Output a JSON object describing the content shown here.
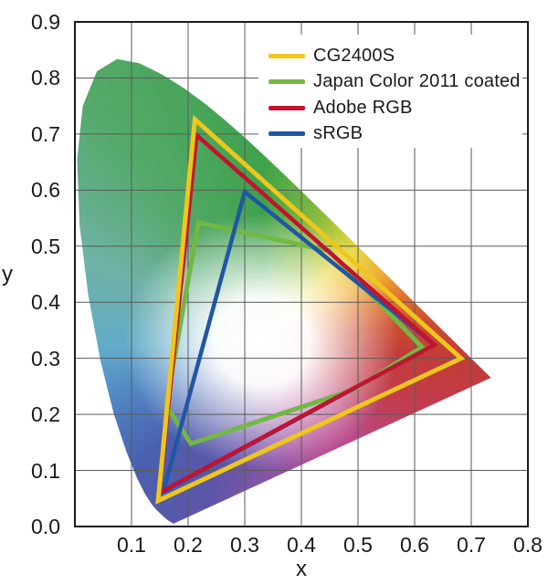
{
  "chart_data": {
    "type": "line",
    "subtype": "cie-1931-chromaticity-gamut-comparison",
    "title": "",
    "xlabel": "x",
    "ylabel": "y",
    "xlim": [
      0,
      0.8
    ],
    "ylim": [
      0,
      0.9
    ],
    "xticks": [
      "0.1",
      "0.2",
      "0.3",
      "0.4",
      "0.5",
      "0.6",
      "0.7",
      "0.8"
    ],
    "yticks": [
      "0.0",
      "0.1",
      "0.2",
      "0.3",
      "0.4",
      "0.5",
      "0.6",
      "0.7",
      "0.8",
      "0.9"
    ],
    "grid": true,
    "grid_color": "#5a5a5a",
    "axis_color": "#1a1a1a",
    "legend_position": "top-right",
    "series": [
      {
        "name": "CG2400S",
        "color": "#eec71c",
        "stroke_width": 5,
        "closed": true,
        "z": 4,
        "points": [
          [
            0.212,
            0.726
          ],
          [
            0.682,
            0.3
          ],
          [
            0.147,
            0.046
          ]
        ]
      },
      {
        "name": "Japan Color 2011 coated",
        "color": "#72b843",
        "stroke_width": 5,
        "closed": true,
        "z": 1,
        "points": [
          [
            0.218,
            0.542
          ],
          [
            0.448,
            0.492
          ],
          [
            0.613,
            0.32
          ],
          [
            0.492,
            0.244
          ],
          [
            0.205,
            0.148
          ],
          [
            0.161,
            0.216
          ]
        ]
      },
      {
        "name": "Adobe RGB",
        "color": "#c41230",
        "stroke_width": 4.5,
        "closed": true,
        "z": 3,
        "points": [
          [
            0.215,
            0.698
          ],
          [
            0.635,
            0.324
          ],
          [
            0.149,
            0.06
          ]
        ]
      },
      {
        "name": "sRGB",
        "color": "#2156a4",
        "stroke_width": 4.5,
        "closed": true,
        "z": 2,
        "points": [
          [
            0.3,
            0.597
          ],
          [
            0.635,
            0.324
          ],
          [
            0.156,
            0.062
          ]
        ]
      }
    ],
    "background": {
      "name": "CIE 1931 xy spectral locus (chromaticity horseshoe)",
      "locus": [
        [
          0.1741,
          0.005
        ],
        [
          0.1644,
          0.0109
        ],
        [
          0.1566,
          0.0177
        ],
        [
          0.144,
          0.0297
        ],
        [
          0.1355,
          0.0399
        ],
        [
          0.1241,
          0.0578
        ],
        [
          0.1096,
          0.0868
        ],
        [
          0.0913,
          0.1327
        ],
        [
          0.0687,
          0.2007
        ],
        [
          0.0454,
          0.295
        ],
        [
          0.0235,
          0.4127
        ],
        [
          0.0082,
          0.5384
        ],
        [
          0.0039,
          0.6548
        ],
        [
          0.0139,
          0.7502
        ],
        [
          0.0389,
          0.812
        ],
        [
          0.0743,
          0.8338
        ],
        [
          0.1142,
          0.8262
        ],
        [
          0.1547,
          0.8059
        ],
        [
          0.1929,
          0.7816
        ],
        [
          0.2296,
          0.7543
        ],
        [
          0.2658,
          0.7243
        ],
        [
          0.3016,
          0.6923
        ],
        [
          0.3373,
          0.6589
        ],
        [
          0.3731,
          0.6245
        ],
        [
          0.4087,
          0.5896
        ],
        [
          0.4441,
          0.5547
        ],
        [
          0.4788,
          0.5202
        ],
        [
          0.5125,
          0.4866
        ],
        [
          0.5448,
          0.4544
        ],
        [
          0.5752,
          0.4242
        ],
        [
          0.6029,
          0.3965
        ],
        [
          0.627,
          0.3725
        ],
        [
          0.6482,
          0.3514
        ],
        [
          0.6658,
          0.334
        ],
        [
          0.6801,
          0.3197
        ],
        [
          0.6915,
          0.3083
        ],
        [
          0.7006,
          0.2993
        ],
        [
          0.7079,
          0.292
        ],
        [
          0.719,
          0.2809
        ],
        [
          0.726,
          0.274
        ],
        [
          0.7347,
          0.2653
        ]
      ]
    }
  }
}
